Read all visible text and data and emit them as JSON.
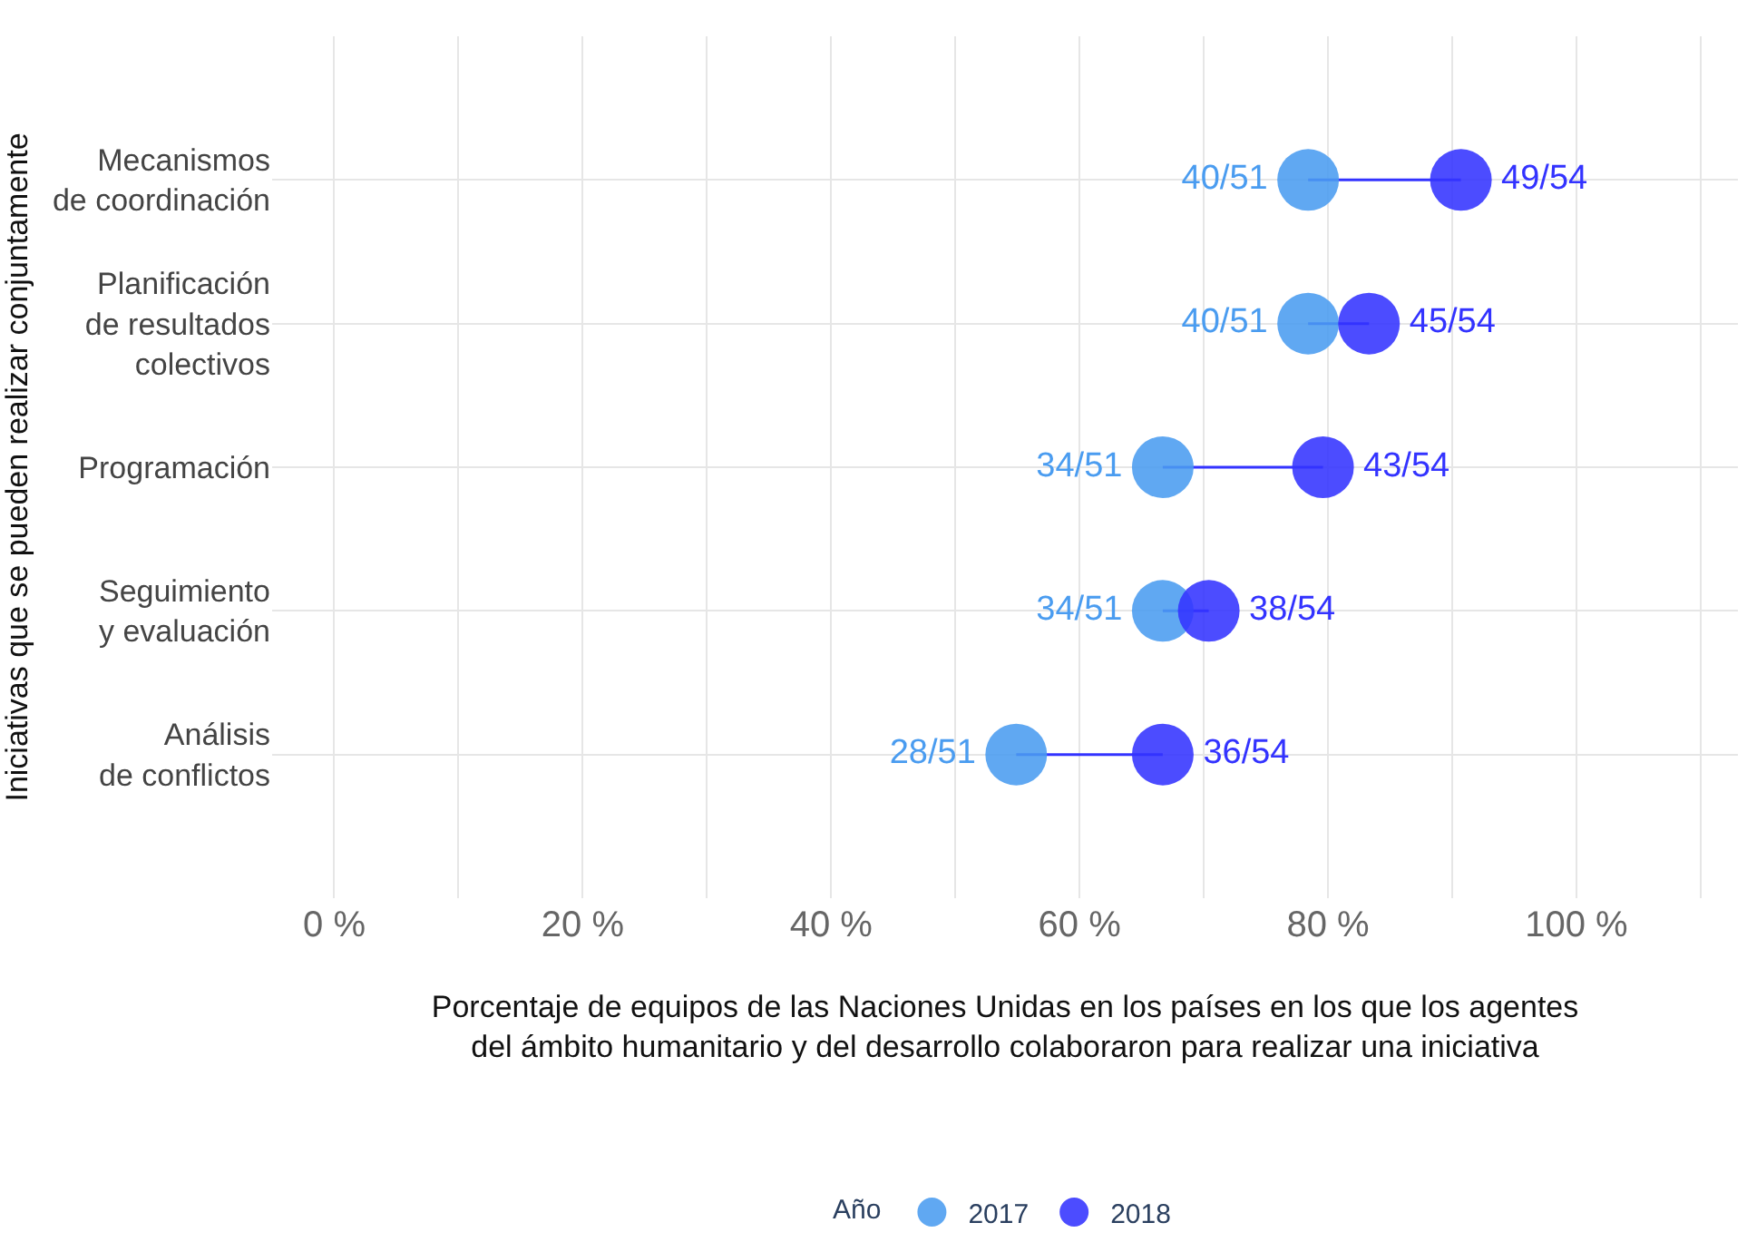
{
  "chart_data": {
    "type": "scatter",
    "orientation": "horizontal",
    "categories": [
      "Mecanismos\nde coordinación",
      "Planificación\nde resultados\ncolectivos",
      "Programación",
      "Seguimiento\ny evaluación",
      "Análisis\nde conflictos"
    ],
    "series": [
      {
        "name": "2017",
        "color": "#4a9cf0",
        "values": [
          78.4,
          78.4,
          66.7,
          66.7,
          54.9
        ],
        "value_labels": [
          "40/51",
          "40/51",
          "34/51",
          "34/51",
          "28/51"
        ]
      },
      {
        "name": "2018",
        "color": "#3333ff",
        "values": [
          90.7,
          83.3,
          79.6,
          70.4,
          66.7
        ],
        "value_labels": [
          "49/54",
          "45/54",
          "43/54",
          "38/54",
          "36/54"
        ]
      }
    ],
    "xlim": [
      -5,
      113
    ],
    "xticks": [
      {
        "value": 0,
        "label": "0 %"
      },
      {
        "value": 10,
        "label": null
      },
      {
        "value": 20,
        "label": "20 %"
      },
      {
        "value": 30,
        "label": null
      },
      {
        "value": 40,
        "label": "40 %"
      },
      {
        "value": 50,
        "label": null
      },
      {
        "value": 60,
        "label": "60 %"
      },
      {
        "value": 70,
        "label": null
      },
      {
        "value": 80,
        "label": "80 %"
      },
      {
        "value": 90,
        "label": null
      },
      {
        "value": 100,
        "label": "100 %"
      },
      {
        "value": 110,
        "label": null
      }
    ],
    "xlabel": "Porcentaje de equipos de las Naciones Unidas en los países en los que los agentes\ndel ámbito humanitario y del desarrollo colaboraron para realizar una iniciativa",
    "ylabel": "Iniciativas que se pueden realizar conjuntamente",
    "legend_title": "Año",
    "legend": "bottom",
    "grid": true,
    "marker": "circle"
  }
}
